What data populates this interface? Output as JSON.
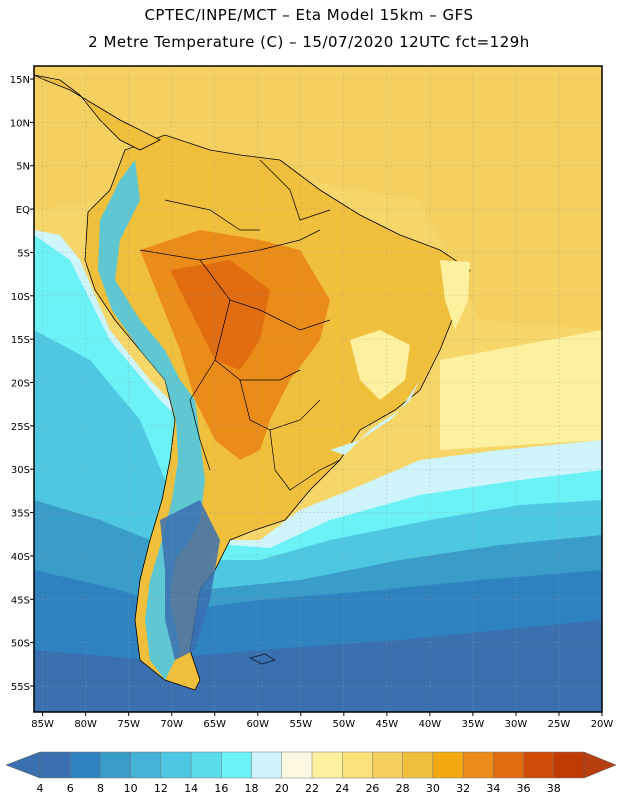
{
  "header": {
    "line1": "CPTEC/INPE/MCT –  Eta Model 15km – GFS",
    "line2": "2 Metre Temperature (C) – 15/07/2020 12UTC fct=129h"
  },
  "map": {
    "lat_range": [
      -58,
      16.5
    ],
    "lon_range": [
      -86,
      -20
    ],
    "lat_ticks": [
      {
        "value": 15,
        "label": "15N"
      },
      {
        "value": 10,
        "label": "10N"
      },
      {
        "value": 5,
        "label": "5N"
      },
      {
        "value": 0,
        "label": "EQ"
      },
      {
        "value": -5,
        "label": "5S"
      },
      {
        "value": -10,
        "label": "10S"
      },
      {
        "value": -15,
        "label": "15S"
      },
      {
        "value": -20,
        "label": "20S"
      },
      {
        "value": -25,
        "label": "25S"
      },
      {
        "value": -30,
        "label": "30S"
      },
      {
        "value": -35,
        "label": "35S"
      },
      {
        "value": -40,
        "label": "40S"
      },
      {
        "value": -45,
        "label": "45S"
      },
      {
        "value": -50,
        "label": "50S"
      },
      {
        "value": -55,
        "label": "55S"
      }
    ],
    "lon_ticks": [
      {
        "value": -85,
        "label": "85W"
      },
      {
        "value": -80,
        "label": "80W"
      },
      {
        "value": -75,
        "label": "75W"
      },
      {
        "value": -70,
        "label": "70W"
      },
      {
        "value": -65,
        "label": "65W"
      },
      {
        "value": -60,
        "label": "60W"
      },
      {
        "value": -55,
        "label": "55W"
      },
      {
        "value": -50,
        "label": "50W"
      },
      {
        "value": -45,
        "label": "45W"
      },
      {
        "value": -40,
        "label": "40W"
      },
      {
        "value": -35,
        "label": "35W"
      },
      {
        "value": -30,
        "label": "30W"
      },
      {
        "value": -25,
        "label": "25W"
      },
      {
        "value": -20,
        "label": "20W"
      }
    ]
  },
  "colorbar": {
    "labels": [
      "4",
      "6",
      "8",
      "10",
      "12",
      "14",
      "16",
      "18",
      "20",
      "22",
      "24",
      "26",
      "28",
      "30",
      "32",
      "34",
      "36",
      "38"
    ],
    "colors": [
      "#3a6fb0",
      "#2f82c0",
      "#3a9cc8",
      "#45b2d8",
      "#4ec8e2",
      "#5adcea",
      "#6af2f6",
      "#cff4fb",
      "#fdf8e2",
      "#fdf1a0",
      "#fbe27a",
      "#f5d060",
      "#f0bf3c",
      "#f2aa10",
      "#ec8c18",
      "#e26c10",
      "#d04a08",
      "#c03a04"
    ],
    "low_color": "#3a6fb0",
    "high_color": "#b84010"
  }
}
